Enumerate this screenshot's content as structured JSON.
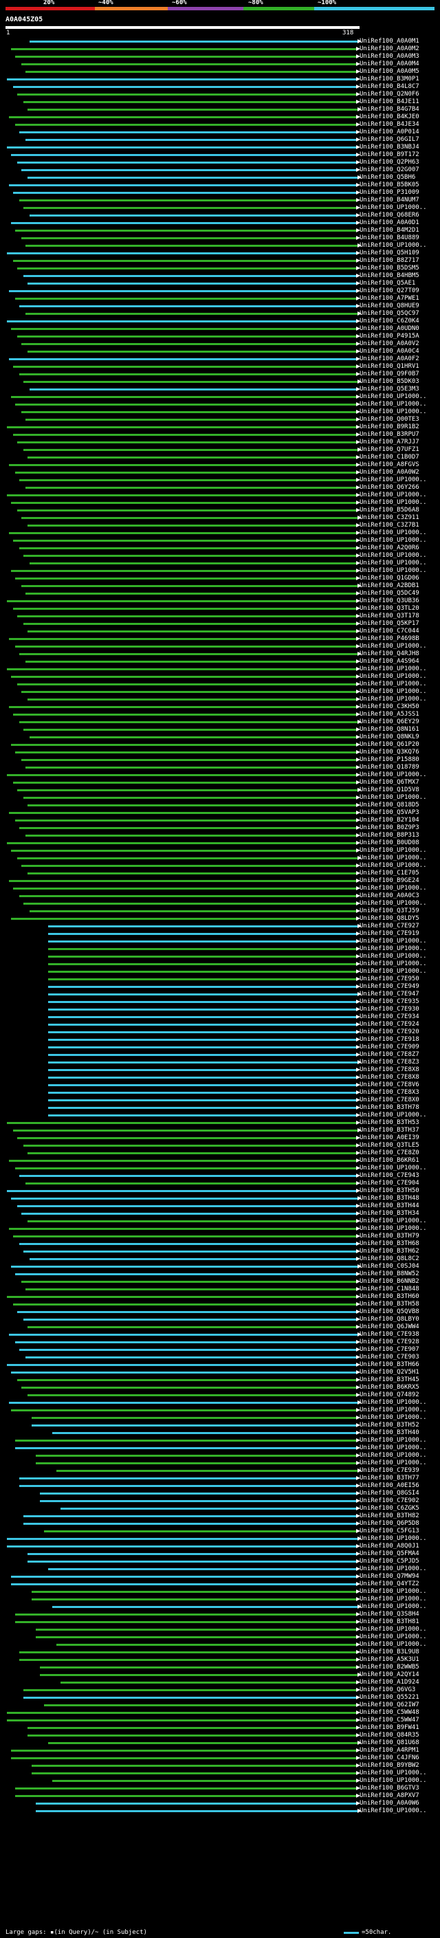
{
  "legend": {
    "percent_labels": [
      "20%",
      "~40%",
      "~60%",
      "~80%",
      "~100%"
    ],
    "colors": [
      "#d7191c",
      "#ef7f2a",
      "#8e44ad",
      "#33b028",
      "#3cc5e3"
    ]
  },
  "query": {
    "id": "A0A045Z05",
    "start": "1",
    "end": "318"
  },
  "colors": {
    "green": "#33b028",
    "cyan": "#3cc5e3",
    "query_bar": "#ffffff"
  },
  "hits": [
    "UniRef100_A0A0M1",
    "UniRef100_A0A0M2",
    "UniRef100_A0A0M3",
    "UniRef100_A0A0M4",
    "UniRef100_A0A0M5",
    "UniRef100_B3M0P1",
    "UniRef100_B4L8C7",
    "UniRef100_Q2N0F6",
    "UniRef100_B4JE11",
    "UniRef100_B4G7B4",
    "UniRef100_B4KJE0",
    "UniRef100_B4JE34",
    "UniRef100_A0P014",
    "UniRef100_Q6GIL7",
    "UniRef100_B3NBJ4",
    "UniRef100_B9T172",
    "UniRef100_Q2PH63",
    "UniRef100_Q2G007",
    "UniRef100_Q5BH6",
    "UniRef100_B5BK05",
    "UniRef100_P31009",
    "UniRef100_B4NUM7",
    "UniRef100_UP1000..",
    "UniRef100_Q68ER6",
    "UniRef100_A0A0D1",
    "UniRef100_B4M2D1",
    "UniRef100_B4U889",
    "UniRef100_UP1000..",
    "UniRef100_Q5H109",
    "UniRef100_B8Z717",
    "UniRef100_B5DSM5",
    "UniRef100_B4HBM5",
    "UniRef100_Q5AE1",
    "UniRef100_Q27T09",
    "UniRef100_A7PWE1",
    "UniRef100_Q8HUE9",
    "UniRef100_Q5QC97",
    "UniRef100_C6Z0K4",
    "UniRef100_A0UDN0",
    "UniRef100_P4915A",
    "UniRef100_A0A0V2",
    "UniRef100_A0A0C4",
    "UniRef100_A0A0F2",
    "UniRef100_Q1HRV1",
    "UniRef100_Q9F0B7",
    "UniRef100_B5DK03",
    "UniRef100_Q5E3M3",
    "UniRef100_UP1000..",
    "UniRef100_UP1000..",
    "UniRef100_UP1000..",
    "UniRef100_Q00TE3",
    "UniRef100_B9R1B2",
    "UniRef100_B3RPU7",
    "UniRef100_A7RJJ7",
    "UniRef100_Q7UFZ1",
    "UniRef100_C1B0D7",
    "UniRef100_A8FGVS",
    "UniRef100_A0A0W2",
    "UniRef100_UP1000..",
    "UniRef100_Q6Y266",
    "UniRef100_UP1000..",
    "UniRef100_UP1000..",
    "UniRef100_B5D6A8",
    "UniRef100_C3Z911",
    "UniRef100_C3Z7B1",
    "UniRef100_UP1000..",
    "UniRef100_UP1000..",
    "UniRef100_A2Q0R6",
    "UniRef100_UP1000..",
    "UniRef100_UP1000..",
    "UniRef100_UP1000..",
    "UniRef100_Q1GD06",
    "UniRef100_A2BDB1",
    "UniRef100_Q5DC49",
    "UniRef100_Q3UB36",
    "UniRef100_Q3TL20",
    "UniRef100_Q3T178",
    "UniRef100_Q5KP17",
    "UniRef100_C7C044",
    "UniRef100_P4698B",
    "UniRef100_UP1000..",
    "UniRef100_Q4RJH8",
    "UniRef100_A4S964",
    "UniRef100_UP1000..",
    "UniRef100_UP1000..",
    "UniRef100_UP1000..",
    "UniRef100_UP1000..",
    "UniRef100_UP1000..",
    "UniRef100_C3KH50",
    "UniRef100_A5JSS1",
    "UniRef100_Q6EY29",
    "UniRef100_Q8N161",
    "UniRef100_Q8NKL9",
    "UniRef100_Q61P20",
    "UniRef100_Q3KQ76",
    "UniRef100_P15880",
    "UniRef100_Q18789",
    "UniRef100_UP1000..",
    "UniRef100_Q6TMX7",
    "UniRef100_Q1D5V8",
    "UniRef100_UP1000..",
    "UniRef100_Q818D5",
    "UniRef100_Q5VAP3",
    "UniRef100_B2Y104",
    "UniRef100_B0Z9P3",
    "UniRef100_B8P313",
    "UniRef100_B0UD08",
    "UniRef100_UP1000..",
    "UniRef100_UP1000..",
    "UniRef100_UP1000..",
    "UniRef100_C1E705",
    "UniRef100_B9GE24",
    "UniRef100_UP1000..",
    "UniRef100_A0A0C3",
    "UniRef100_UP1000..",
    "UniRef100_Q3TJ59",
    "UniRef100_Q8LDY5",
    "UniRef100_C7E927",
    "UniRef100_C7E919",
    "UniRef100_UP1000..",
    "UniRef100_UP1000..",
    "UniRef100_UP1000..",
    "UniRef100_UP1000..",
    "UniRef100_UP1000..",
    "UniRef100_C7E950",
    "UniRef100_C7E949",
    "UniRef100_C7E947",
    "UniRef100_C7E935",
    "UniRef100_C7E930",
    "UniRef100_C7E934",
    "UniRef100_C7E924",
    "UniRef100_C7E920",
    "UniRef100_C7E918",
    "UniRef100_C7E909",
    "UniRef100_C7E8Z7",
    "UniRef100_C7E8Z3",
    "UniRef100_C7E8X8",
    "UniRef100_C7E8X8",
    "UniRef100_C7E8V6",
    "UniRef100_C7E8X3",
    "UniRef100_C7E8X0",
    "UniRef100_B3TH78",
    "UniRef100_UP1000..",
    "UniRef100_B3TH53",
    "UniRef100_B3TH37",
    "UniRef100_A0EI39",
    "UniRef100_Q3TLE5",
    "UniRef100_C7E8Z0",
    "UniRef100_B6KR61",
    "UniRef100_UP1000..",
    "UniRef100_C7E943",
    "UniRef100_C7E904",
    "UniRef100_B3TH50",
    "UniRef100_B3TH48",
    "UniRef100_B3TH44",
    "UniRef100_B3TH34",
    "UniRef100_UP1000..",
    "UniRef100_UP1000..",
    "UniRef100_B3TH79",
    "UniRef100_B3TH68",
    "UniRef100_B3TH62",
    "UniRef100_Q8L8C2",
    "UniRef100_C0SJ04",
    "UniRef100_B8NW52",
    "UniRef100_B6NNB2",
    "UniRef100_C1N848",
    "UniRef100_B3TH60",
    "UniRef100_B3TH58",
    "UniRef100_Q5QVB8",
    "UniRef100_Q8LBY0",
    "UniRef100_Q6JWW4",
    "UniRef100_C7E938",
    "UniRef100_C7E928",
    "UniRef100_C7E907",
    "UniRef100_C7E903",
    "UniRef100_B3TH66",
    "UniRef100_Q2V5H1",
    "UniRef100_B3TH45",
    "UniRef100_B6KRX5",
    "UniRef100_Q74892",
    "UniRef100_UP1000..",
    "UniRef100_UP1000..",
    "UniRef100_UP1000..",
    "UniRef100_B3TH52",
    "UniRef100_B3TH40",
    "UniRef100_UP1000..",
    "UniRef100_UP1000..",
    "UniRef100_UP1000..",
    "UniRef100_UP1000..",
    "UniRef100_C7E939",
    "UniRef100_B3TH77",
    "UniRef100_A0EI56",
    "UniRef100_Q8GSI4",
    "UniRef100_C7E902",
    "UniRef100_C6ZGK5",
    "UniRef100_B3TH82",
    "UniRef100_Q6P5D8",
    "UniRef100_C5FG13",
    "UniRef100_UP1000..",
    "UniRef100_A8Q0J1",
    "UniRef100_Q5FMA4",
    "UniRef100_C5PJD5",
    "UniRef100_UP1000..",
    "UniRef100_Q7MW94",
    "UniRef100_Q4YTZ2",
    "UniRef100_UP1000..",
    "UniRef100_UP1000..",
    "UniRef100_UP1000..",
    "UniRef100_Q3S8H4",
    "UniRef100_B3TH81",
    "UniRef100_UP1000..",
    "UniRef100_UP1000..",
    "UniRef100_UP1000..",
    "UniRef100_B3L9U8",
    "UniRef100_A5K3U1",
    "UniRef100_B2WWB5",
    "UniRef100_A2QY14",
    "UniRef100_A1D924",
    "UniRef100_Q6VG3",
    "UniRef100_Q55221",
    "UniRef100_Q62IW7",
    "UniRef100_C5WW48",
    "UniRef100_C5WW47",
    "UniRef100_B9FW41",
    "UniRef100_Q84R35",
    "UniRef100_Q81U68",
    "UniRef100_A4RPM1",
    "UniRef100_C4JFN6",
    "UniRef100_B9YBW2",
    "UniRef100_UP1000..",
    "UniRef100_UP1000..",
    "UniRef100_B6GTV3",
    "UniRef100_A8PXV7",
    "UniRef100_A0A0W6",
    "UniRef100_UP1000.."
  ],
  "footer": {
    "note": "Large gaps: ▪(in Query)/~ (in Subject)",
    "key": "=50char."
  }
}
